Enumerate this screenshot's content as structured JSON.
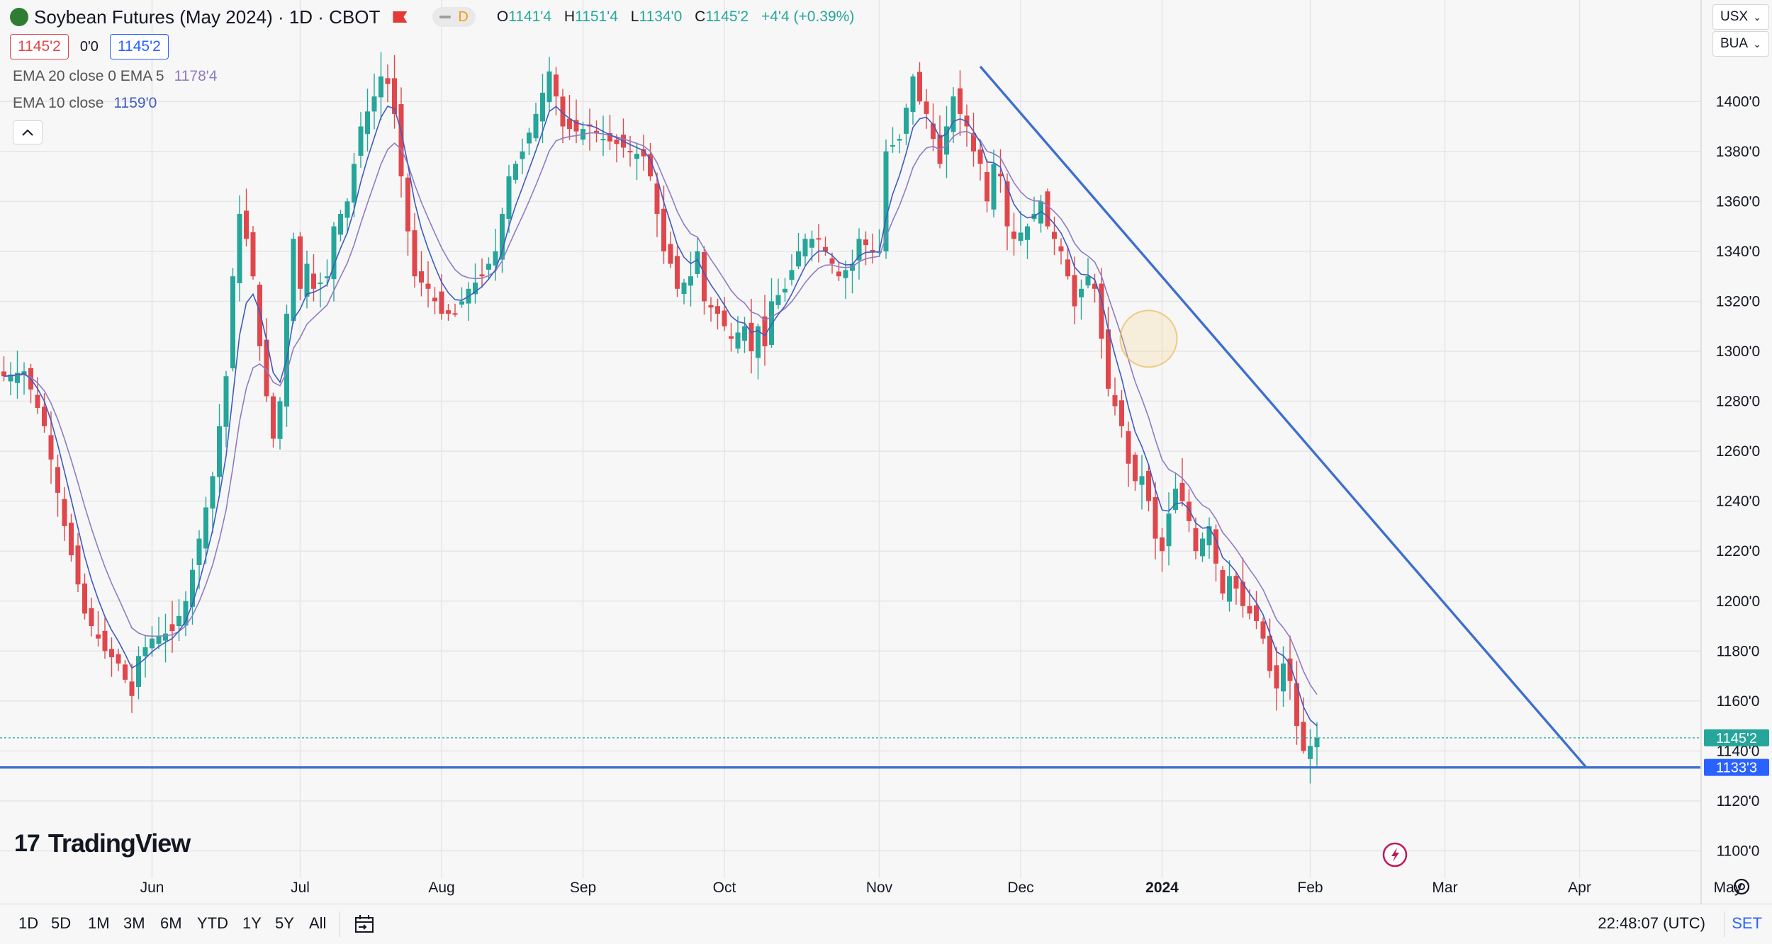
{
  "header": {
    "title": "Soybean Futures (May 2024) · 1D · CBOT",
    "mode_badge": "D",
    "ohlc": {
      "o_label": "O",
      "o": "1141'4",
      "h_label": "H",
      "h": "1151'4",
      "l_label": "L",
      "l": "1134'0",
      "c_label": "C",
      "c": "1145'2",
      "change": "+4'4 (+0.39%)"
    },
    "bid": "1145'2",
    "spread": "0'0",
    "ask": "1145'2",
    "ema1_label": "EMA 20 close 0 EMA 5",
    "ema1_value": "1178'4",
    "ema2_label": "EMA 10 close",
    "ema2_value": "1159'0",
    "collapse_icon": "chevron-up"
  },
  "symbol_selectors": [
    {
      "label": "USX"
    },
    {
      "label": "BUA"
    }
  ],
  "watermark": {
    "mark": "17",
    "text": "TradingView"
  },
  "timeframes": [
    "1D",
    "5D",
    "1M",
    "3M",
    "6M",
    "YTD",
    "1Y",
    "5Y",
    "All"
  ],
  "clock": "22:48:07 (UTC)",
  "set_label": "SET",
  "colors": {
    "up": "#26a69a",
    "down": "#e0474c",
    "ema_fast": "#3f5bbf",
    "ema_slow": "#8e7cc3",
    "trendline": "#3d6fcf",
    "support": "#3d6fcf",
    "last_price": "#26a69a"
  },
  "chart_data": {
    "type": "candlestick",
    "y_ticks": [
      "1100'0",
      "1120'0",
      "1140'0",
      "1160'0",
      "1180'0",
      "1200'0",
      "1220'0",
      "1240'0",
      "1260'0",
      "1280'0",
      "1300'0",
      "1320'0",
      "1340'0",
      "1360'0",
      "1380'0",
      "1400'0"
    ],
    "ylim": [
      1090,
      1420
    ],
    "x_ticks": [
      "Jun",
      "Jul",
      "Aug",
      "Sep",
      "Oct",
      "Nov",
      "Dec",
      "2024",
      "Feb",
      "Mar",
      "Apr",
      "May"
    ],
    "x_tick_days": [
      22,
      44,
      65,
      86,
      107,
      130,
      151,
      172,
      194,
      214,
      234,
      256
    ],
    "last_price": {
      "label": "1145'2",
      "value": 1145.25
    },
    "support_line": {
      "label": "1133'3",
      "value": 1133.4
    },
    "trendline": {
      "from": {
        "day": 145,
        "price": 1414
      },
      "to": {
        "day": 235,
        "price": 1133.4
      }
    },
    "highlight": {
      "day": 170,
      "price": 1305
    },
    "close_anchors": [
      [
        0,
        1290
      ],
      [
        3,
        1292
      ],
      [
        6,
        1270
      ],
      [
        9,
        1230
      ],
      [
        12,
        1195
      ],
      [
        15,
        1180
      ],
      [
        17,
        1175
      ],
      [
        19,
        1162
      ],
      [
        20,
        1178
      ],
      [
        22,
        1185
      ],
      [
        25,
        1188
      ],
      [
        27,
        1200
      ],
      [
        29,
        1225
      ],
      [
        31,
        1250
      ],
      [
        33,
        1290
      ],
      [
        34,
        1330
      ],
      [
        35,
        1355
      ],
      [
        36,
        1345
      ],
      [
        37,
        1330
      ],
      [
        38,
        1302
      ],
      [
        39,
        1282
      ],
      [
        40,
        1265
      ],
      [
        41,
        1280
      ],
      [
        42,
        1315
      ],
      [
        43,
        1345
      ],
      [
        44,
        1325
      ],
      [
        45,
        1335
      ],
      [
        46,
        1325
      ],
      [
        48,
        1330
      ],
      [
        49,
        1350
      ],
      [
        51,
        1360
      ],
      [
        53,
        1390
      ],
      [
        55,
        1402
      ],
      [
        56,
        1410
      ],
      [
        57,
        1407
      ],
      [
        58,
        1395
      ],
      [
        59,
        1370
      ],
      [
        60,
        1348
      ],
      [
        61,
        1330
      ],
      [
        63,
        1325
      ],
      [
        65,
        1315
      ],
      [
        67,
        1315
      ],
      [
        69,
        1325
      ],
      [
        71,
        1330
      ],
      [
        73,
        1340
      ],
      [
        75,
        1370
      ],
      [
        77,
        1380
      ],
      [
        79,
        1395
      ],
      [
        81,
        1412
      ],
      [
        82,
        1402
      ],
      [
        83,
        1390
      ],
      [
        85,
        1388
      ],
      [
        87,
        1390
      ],
      [
        89,
        1385
      ],
      [
        91,
        1383
      ],
      [
        93,
        1380
      ],
      [
        95,
        1378
      ],
      [
        96,
        1370
      ],
      [
        97,
        1355
      ],
      [
        98,
        1340
      ],
      [
        99,
        1335
      ],
      [
        100,
        1325
      ],
      [
        102,
        1330
      ],
      [
        103,
        1340
      ],
      [
        104,
        1320
      ],
      [
        106,
        1315
      ],
      [
        108,
        1305
      ],
      [
        110,
        1310
      ],
      [
        111,
        1300
      ],
      [
        112,
        1310
      ],
      [
        113,
        1302
      ],
      [
        114,
        1320
      ],
      [
        116,
        1325
      ],
      [
        118,
        1340
      ],
      [
        119,
        1345
      ],
      [
        121,
        1345
      ],
      [
        122,
        1340
      ],
      [
        124,
        1330
      ],
      [
        126,
        1335
      ],
      [
        127,
        1345
      ],
      [
        129,
        1340
      ],
      [
        130,
        1340
      ],
      [
        131,
        1380
      ],
      [
        133,
        1385
      ],
      [
        135,
        1410
      ],
      [
        136,
        1400
      ],
      [
        137,
        1395
      ],
      [
        138,
        1385
      ],
      [
        139,
        1375
      ],
      [
        140,
        1390
      ],
      [
        141,
        1402
      ],
      [
        142,
        1395
      ],
      [
        143,
        1390
      ],
      [
        144,
        1380
      ],
      [
        145,
        1375
      ],
      [
        146,
        1360
      ],
      [
        147,
        1375
      ],
      [
        148,
        1370
      ],
      [
        149,
        1350
      ],
      [
        150,
        1345
      ],
      [
        152,
        1350
      ],
      [
        154,
        1360
      ],
      [
        155,
        1350
      ],
      [
        156,
        1345
      ],
      [
        157,
        1340
      ],
      [
        158,
        1330
      ],
      [
        159,
        1318
      ],
      [
        160,
        1325
      ],
      [
        161,
        1330
      ],
      [
        162,
        1325
      ],
      [
        163,
        1305
      ],
      [
        164,
        1285
      ],
      [
        165,
        1278
      ],
      [
        166,
        1270
      ],
      [
        167,
        1255
      ],
      [
        168,
        1248
      ],
      [
        169,
        1250
      ],
      [
        170,
        1240
      ],
      [
        171,
        1225
      ],
      [
        172,
        1220
      ],
      [
        173,
        1235
      ],
      [
        174,
        1245
      ],
      [
        175,
        1240
      ],
      [
        176,
        1232
      ],
      [
        177,
        1220
      ],
      [
        178,
        1225
      ],
      [
        179,
        1230
      ],
      [
        180,
        1215
      ],
      [
        181,
        1203
      ],
      [
        182,
        1210
      ],
      [
        183,
        1205
      ],
      [
        184,
        1198
      ],
      [
        185,
        1195
      ],
      [
        186,
        1192
      ],
      [
        187,
        1185
      ],
      [
        188,
        1172
      ],
      [
        189,
        1165
      ],
      [
        190,
        1175
      ],
      [
        191,
        1168
      ],
      [
        192,
        1150
      ],
      [
        193,
        1140
      ],
      [
        194,
        1142
      ],
      [
        195,
        1145.25
      ]
    ]
  }
}
